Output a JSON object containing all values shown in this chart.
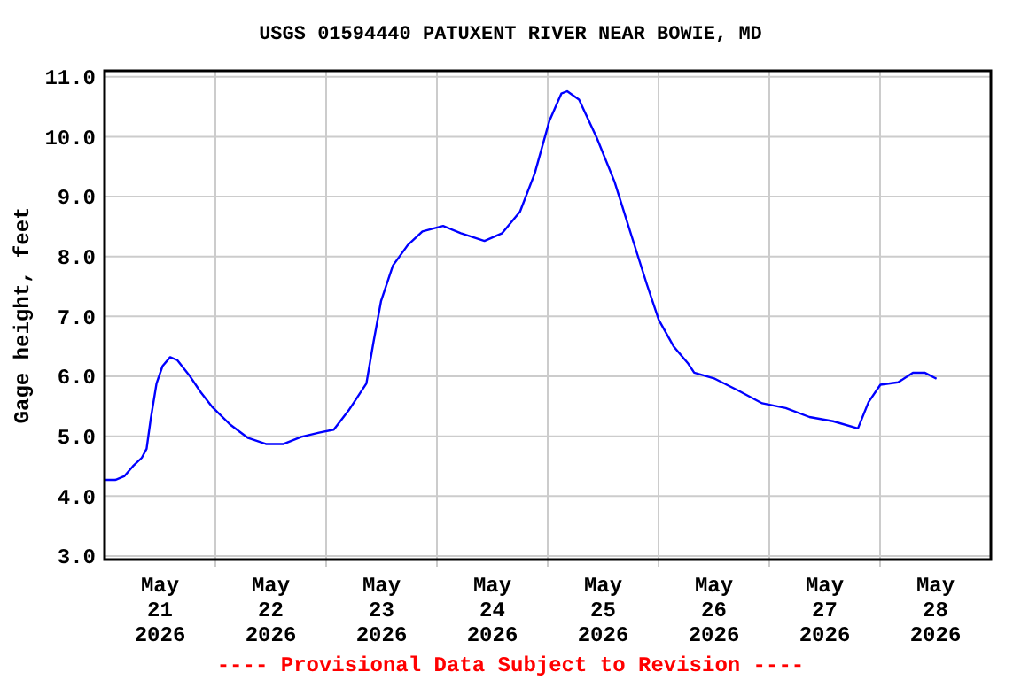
{
  "chart_data": {
    "type": "line",
    "title": "USGS 01594440 PATUXENT RIVER NEAR BOWIE, MD",
    "ylabel": "Gage height, feet",
    "annotations": [
      "---- Provisional Data Subject to Revision ----"
    ],
    "xlim": [
      "2026-05-21",
      "2026-05-29"
    ],
    "xticks": [
      {
        "value": "2026-05-21T12:00",
        "label": "May\n21\n2026"
      },
      {
        "value": "2026-05-22T12:00",
        "label": "May\n22\n2026"
      },
      {
        "value": "2026-05-23T12:00",
        "label": "May\n23\n2026"
      },
      {
        "value": "2026-05-24T12:00",
        "label": "May\n24\n2026"
      },
      {
        "value": "2026-05-25T12:00",
        "label": "May\n25\n2026"
      },
      {
        "value": "2026-05-26T12:00",
        "label": "May\n26\n2026"
      },
      {
        "value": "2026-05-27T12:00",
        "label": "May\n27\n2026"
      },
      {
        "value": "2026-05-28T12:00",
        "label": "May\n28\n2026"
      },
      {
        "value": "2026-05-22",
        "label": null
      },
      {
        "value": "2026-05-23",
        "label": null
      },
      {
        "value": "2026-05-24",
        "label": null
      },
      {
        "value": "2026-05-25",
        "label": null
      },
      {
        "value": "2026-05-26",
        "label": null
      },
      {
        "value": "2026-05-27",
        "label": null
      },
      {
        "value": "2026-05-28",
        "label": null
      }
    ],
    "ylim": [
      2.94,
      11.1
    ],
    "yticks": [
      {
        "value": 3,
        "label": "3.0"
      },
      {
        "value": 4,
        "label": "4.0"
      },
      {
        "value": 5,
        "label": "5.0"
      },
      {
        "value": 6,
        "label": "6.0"
      },
      {
        "value": 7,
        "label": "7.0"
      },
      {
        "value": 8,
        "label": "8.0"
      },
      {
        "value": 9,
        "label": "9.0"
      },
      {
        "value": 10,
        "label": "10.0"
      },
      {
        "value": 11,
        "label": "11.0"
      }
    ],
    "grid": true,
    "x": [
      "2026-05-21T00:00",
      "2026-05-21T02:18",
      "2026-05-21T04:15",
      "2026-05-21T06:09",
      "2026-05-21T08:04",
      "2026-05-21T09:06",
      "2026-05-21T10:00",
      "2026-05-21T11:15",
      "2026-05-21T12:33",
      "2026-05-21T14:12",
      "2026-05-21T15:45",
      "2026-05-21T18:19",
      "2026-05-21T20:52",
      "2026-05-21T23:25",
      "2026-05-22T03:16",
      "2026-05-22T07:06",
      "2026-05-22T10:56",
      "2026-05-22T14:47",
      "2026-05-22T18:37",
      "2026-05-22T22:27",
      "2026-05-23T01:39",
      "2026-05-23T04:52",
      "2026-05-23T08:43",
      "2026-05-23T10:15",
      "2026-05-23T11:54",
      "2026-05-23T14:28",
      "2026-05-23T17:40",
      "2026-05-23T20:51",
      "2026-05-24T01:20",
      "2026-05-24T05:11",
      "2026-05-24T10:18",
      "2026-05-24T14:08",
      "2026-05-24T18:00",
      "2026-05-24T21:12",
      "2026-05-25T00:23",
      "2026-05-25T02:57",
      "2026-05-25T04:13",
      "2026-05-25T06:47",
      "2026-05-25T10:38",
      "2026-05-25T14:28",
      "2026-05-25T18:18",
      "2026-05-25T21:30",
      "2026-05-26T00:04",
      "2026-05-26T03:16",
      "2026-05-26T06:27",
      "2026-05-26T07:44",
      "2026-05-26T12:12",
      "2026-05-26T17:20",
      "2026-05-26T22:27",
      "2026-05-27T03:34",
      "2026-05-27T08:42",
      "2026-05-27T13:49",
      "2026-05-27T19:12",
      "2026-05-27T21:30",
      "2026-05-28T00:04",
      "2026-05-28T03:55",
      "2026-05-28T07:06",
      "2026-05-28T09:40",
      "2026-05-28T12:13"
    ],
    "series": [
      {
        "color": "#0000ff",
        "values": [
          4.27,
          4.27,
          4.33,
          4.5,
          4.64,
          4.79,
          5.29,
          5.88,
          6.17,
          6.32,
          6.27,
          6.02,
          5.73,
          5.48,
          5.19,
          4.97,
          4.87,
          4.87,
          4.99,
          5.06,
          5.11,
          5.43,
          5.88,
          6.57,
          7.26,
          7.85,
          8.19,
          8.42,
          8.51,
          8.39,
          8.26,
          8.39,
          8.75,
          9.39,
          10.27,
          10.72,
          10.76,
          10.62,
          9.98,
          9.25,
          8.31,
          7.53,
          6.94,
          6.5,
          6.21,
          6.06,
          5.96,
          5.76,
          5.55,
          5.47,
          5.32,
          5.25,
          5.13,
          5.57,
          5.86,
          5.9,
          6.06,
          6.06,
          5.96
        ]
      }
    ]
  }
}
